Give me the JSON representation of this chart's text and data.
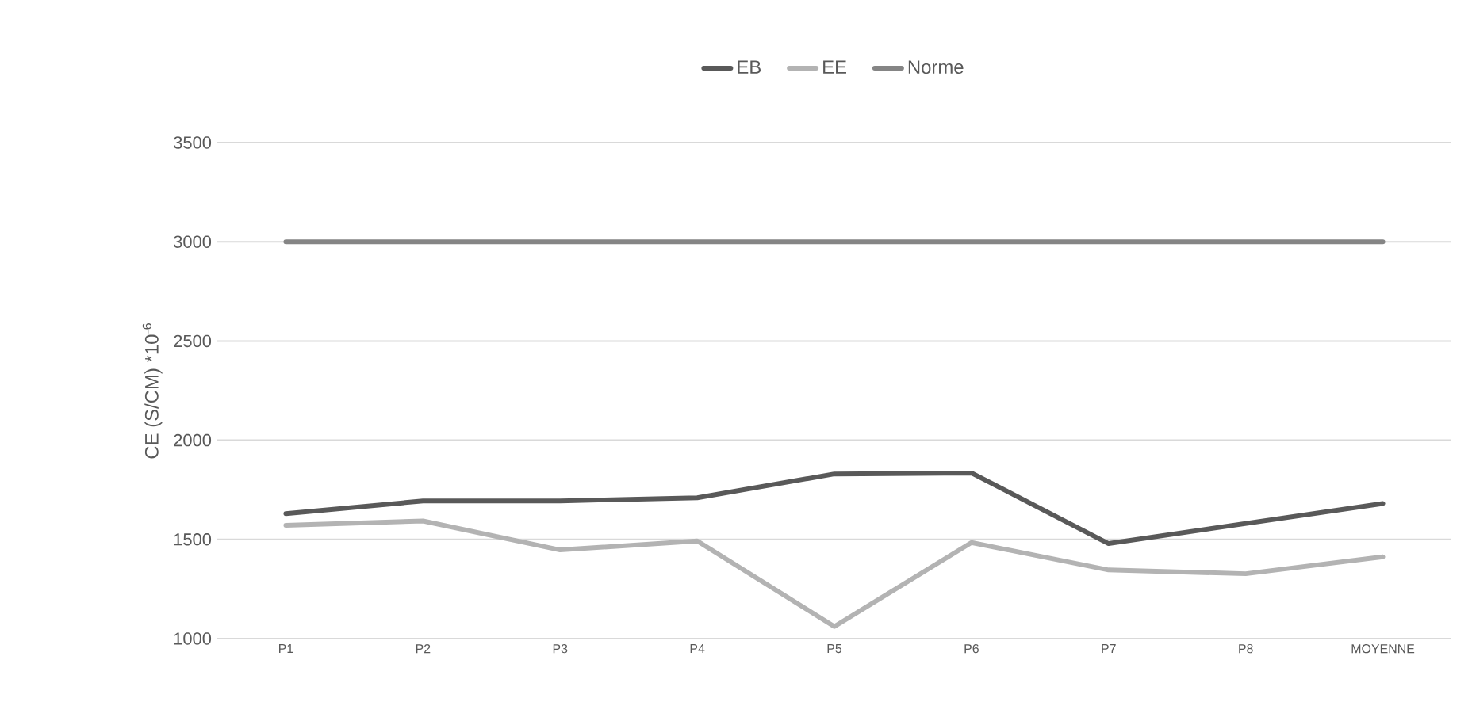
{
  "chart_data": {
    "type": "line",
    "ylabel": "CE (S/CM) *10$^{-6}$",
    "categories": [
      "P1",
      "P2",
      "P3",
      "P4",
      "P5",
      "P6",
      "P7",
      "P8",
      "MOYENNE"
    ],
    "series": [
      {
        "name": "EB",
        "color": "#595959",
        "values": [
          1630,
          1694,
          1694,
          1710,
          1830,
          1835,
          1479,
          1580,
          1681
        ]
      },
      {
        "name": "EE",
        "color": "#b3b3b3",
        "values": [
          1571,
          1593,
          1447,
          1492,
          1061,
          1484,
          1346,
          1327,
          1412
        ]
      },
      {
        "name": "Norme",
        "color": "#858585",
        "values": [
          3000,
          3000,
          3000,
          3000,
          3000,
          3000,
          3000,
          3000,
          3000
        ]
      }
    ],
    "ylim": [
      1000,
      3500
    ],
    "yticks": [
      1000,
      1500,
      2000,
      2500,
      3000,
      3500
    ],
    "grid": "y",
    "legend": "top",
    "marker": "none",
    "line_style": "solid"
  }
}
